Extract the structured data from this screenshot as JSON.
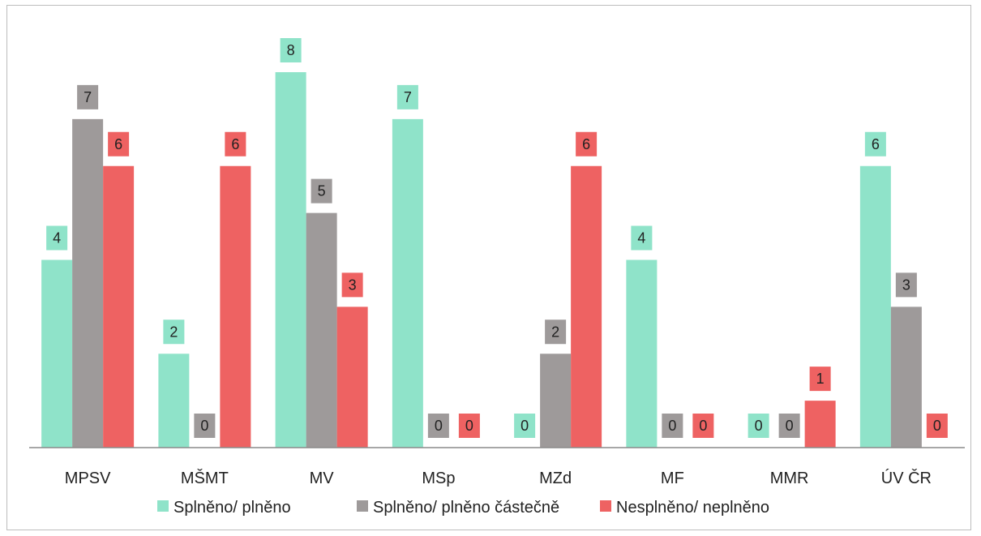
{
  "chart_data": {
    "type": "bar",
    "categories": [
      "MPSV",
      "MŠMT",
      "MV",
      "MSp",
      "MZd",
      "MF",
      "MMR",
      "ÚV ČR"
    ],
    "series": [
      {
        "name": "Splněno/ plněno",
        "color": "#8fe3c9",
        "values": [
          4,
          2,
          8,
          7,
          0,
          4,
          0,
          6
        ]
      },
      {
        "name": "Splněno/ plněno částečně",
        "color": "#9e9a9a",
        "values": [
          7,
          0,
          5,
          0,
          2,
          0,
          0,
          3
        ]
      },
      {
        "name": "Nesplněno/ neplněno",
        "color": "#ee6262",
        "values": [
          6,
          6,
          3,
          0,
          6,
          0,
          1,
          0
        ]
      }
    ],
    "ylim": [
      0,
      8
    ],
    "legend": "bottom",
    "grid": false,
    "data_labels": true
  }
}
